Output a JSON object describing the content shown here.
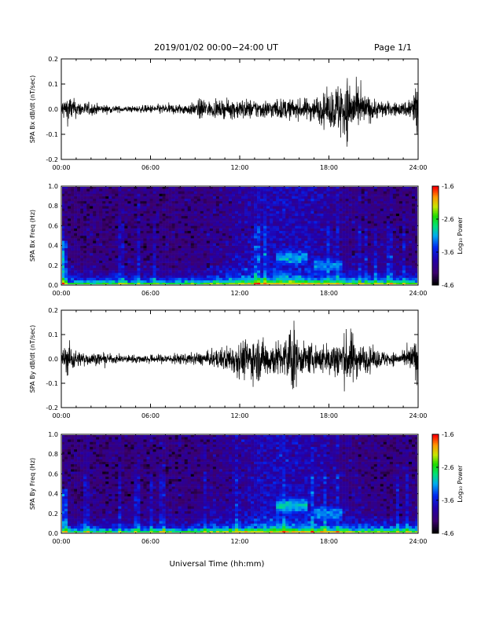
{
  "header": {
    "title": "2019/01/02  00:00−24:00 UT",
    "page": "Page 1/1"
  },
  "footer": {
    "xlabel": "Universal Time (hh:mm)"
  },
  "chart_data": [
    {
      "type": "line",
      "ylabel": "SPA Bx dB/dt (nT/sec)",
      "xlabel": "",
      "x_range_hours": [
        0,
        24
      ],
      "x_ticks": [
        "00:00",
        "06:00",
        "12:00",
        "18:00",
        "24:00"
      ],
      "ylim": [
        -0.2,
        0.2
      ],
      "y_ticks": [
        "-0.2",
        "-0.1",
        "0.0",
        "0.1",
        "0.2"
      ],
      "envelope": {
        "hour": [
          0,
          0.5,
          1,
          2,
          3,
          4,
          5,
          6,
          7,
          8,
          9,
          9.5,
          10,
          11,
          12,
          13,
          14,
          15,
          16,
          17,
          18,
          19,
          19.5,
          20,
          21,
          22,
          23,
          23.8,
          24
        ],
        "amplitude": [
          0.045,
          0.07,
          0.04,
          0.03,
          0.02,
          0.015,
          0.015,
          0.02,
          0.025,
          0.025,
          0.03,
          0.06,
          0.035,
          0.04,
          0.05,
          0.045,
          0.045,
          0.05,
          0.045,
          0.06,
          0.08,
          0.16,
          0.14,
          0.09,
          0.05,
          0.035,
          0.03,
          0.1,
          0.2
        ]
      }
    },
    {
      "type": "heatmap",
      "ylabel": "SPA Bx Freq (Hz)",
      "xlabel": "",
      "x_range_hours": [
        0,
        24
      ],
      "x_ticks": [
        "00:00",
        "06:00",
        "12:00",
        "18:00",
        "24:00"
      ],
      "ylim": [
        0.0,
        1.0
      ],
      "y_ticks": [
        "0.0",
        "0.2",
        "0.4",
        "0.6",
        "0.8",
        "1.0"
      ],
      "colorbar": {
        "label": "Log₁₀ Power",
        "ticks": [
          "-1.6",
          "-2.6",
          "-3.6",
          "-4.6"
        ],
        "range": [
          -4.6,
          -1.6
        ]
      },
      "enhancements": [
        {
          "hour_start": 14.5,
          "hour_end": 16.5,
          "freq": 0.28,
          "level": -3.1
        },
        {
          "hour_start": 17.0,
          "hour_end": 19.0,
          "freq": 0.2,
          "level": -3.2
        }
      ]
    },
    {
      "type": "line",
      "ylabel": "SPA By dB/dt (nT/sec)",
      "xlabel": "",
      "x_range_hours": [
        0,
        24
      ],
      "x_ticks": [
        "00:00",
        "06:00",
        "12:00",
        "18:00",
        "24:00"
      ],
      "ylim": [
        -0.2,
        0.2
      ],
      "y_ticks": [
        "-0.2",
        "-0.1",
        "0.0",
        "0.1",
        "0.2"
      ],
      "envelope": {
        "hour": [
          0,
          0.5,
          1,
          2,
          3,
          4,
          5,
          6,
          7,
          8,
          9,
          10,
          11,
          12,
          13,
          14,
          15,
          15.5,
          16,
          17,
          18,
          19,
          19.5,
          20,
          21,
          22,
          23,
          23.8,
          24
        ],
        "amplitude": [
          0.04,
          0.09,
          0.04,
          0.03,
          0.025,
          0.02,
          0.02,
          0.02,
          0.025,
          0.025,
          0.03,
          0.035,
          0.06,
          0.09,
          0.11,
          0.09,
          0.09,
          0.2,
          0.08,
          0.07,
          0.08,
          0.12,
          0.14,
          0.08,
          0.05,
          0.035,
          0.03,
          0.09,
          0.12
        ]
      }
    },
    {
      "type": "heatmap",
      "ylabel": "SPA By Freq (Hz)",
      "xlabel": "",
      "x_range_hours": [
        0,
        24
      ],
      "x_ticks": [
        "00:00",
        "06:00",
        "12:00",
        "18:00",
        "24:00"
      ],
      "ylim": [
        0.0,
        1.0
      ],
      "y_ticks": [
        "0.0",
        "0.2",
        "0.4",
        "0.6",
        "0.8",
        "1.0"
      ],
      "colorbar": {
        "label": "Log₁₀ Power",
        "ticks": [
          "-1.6",
          "-2.6",
          "-3.6",
          "-4.6"
        ],
        "range": [
          -4.6,
          -1.6
        ]
      },
      "enhancements": [
        {
          "hour_start": 14.5,
          "hour_end": 16.5,
          "freq": 0.28,
          "level": -3.0
        },
        {
          "hour_start": 17.0,
          "hour_end": 19.0,
          "freq": 0.2,
          "level": -3.2
        }
      ]
    }
  ]
}
